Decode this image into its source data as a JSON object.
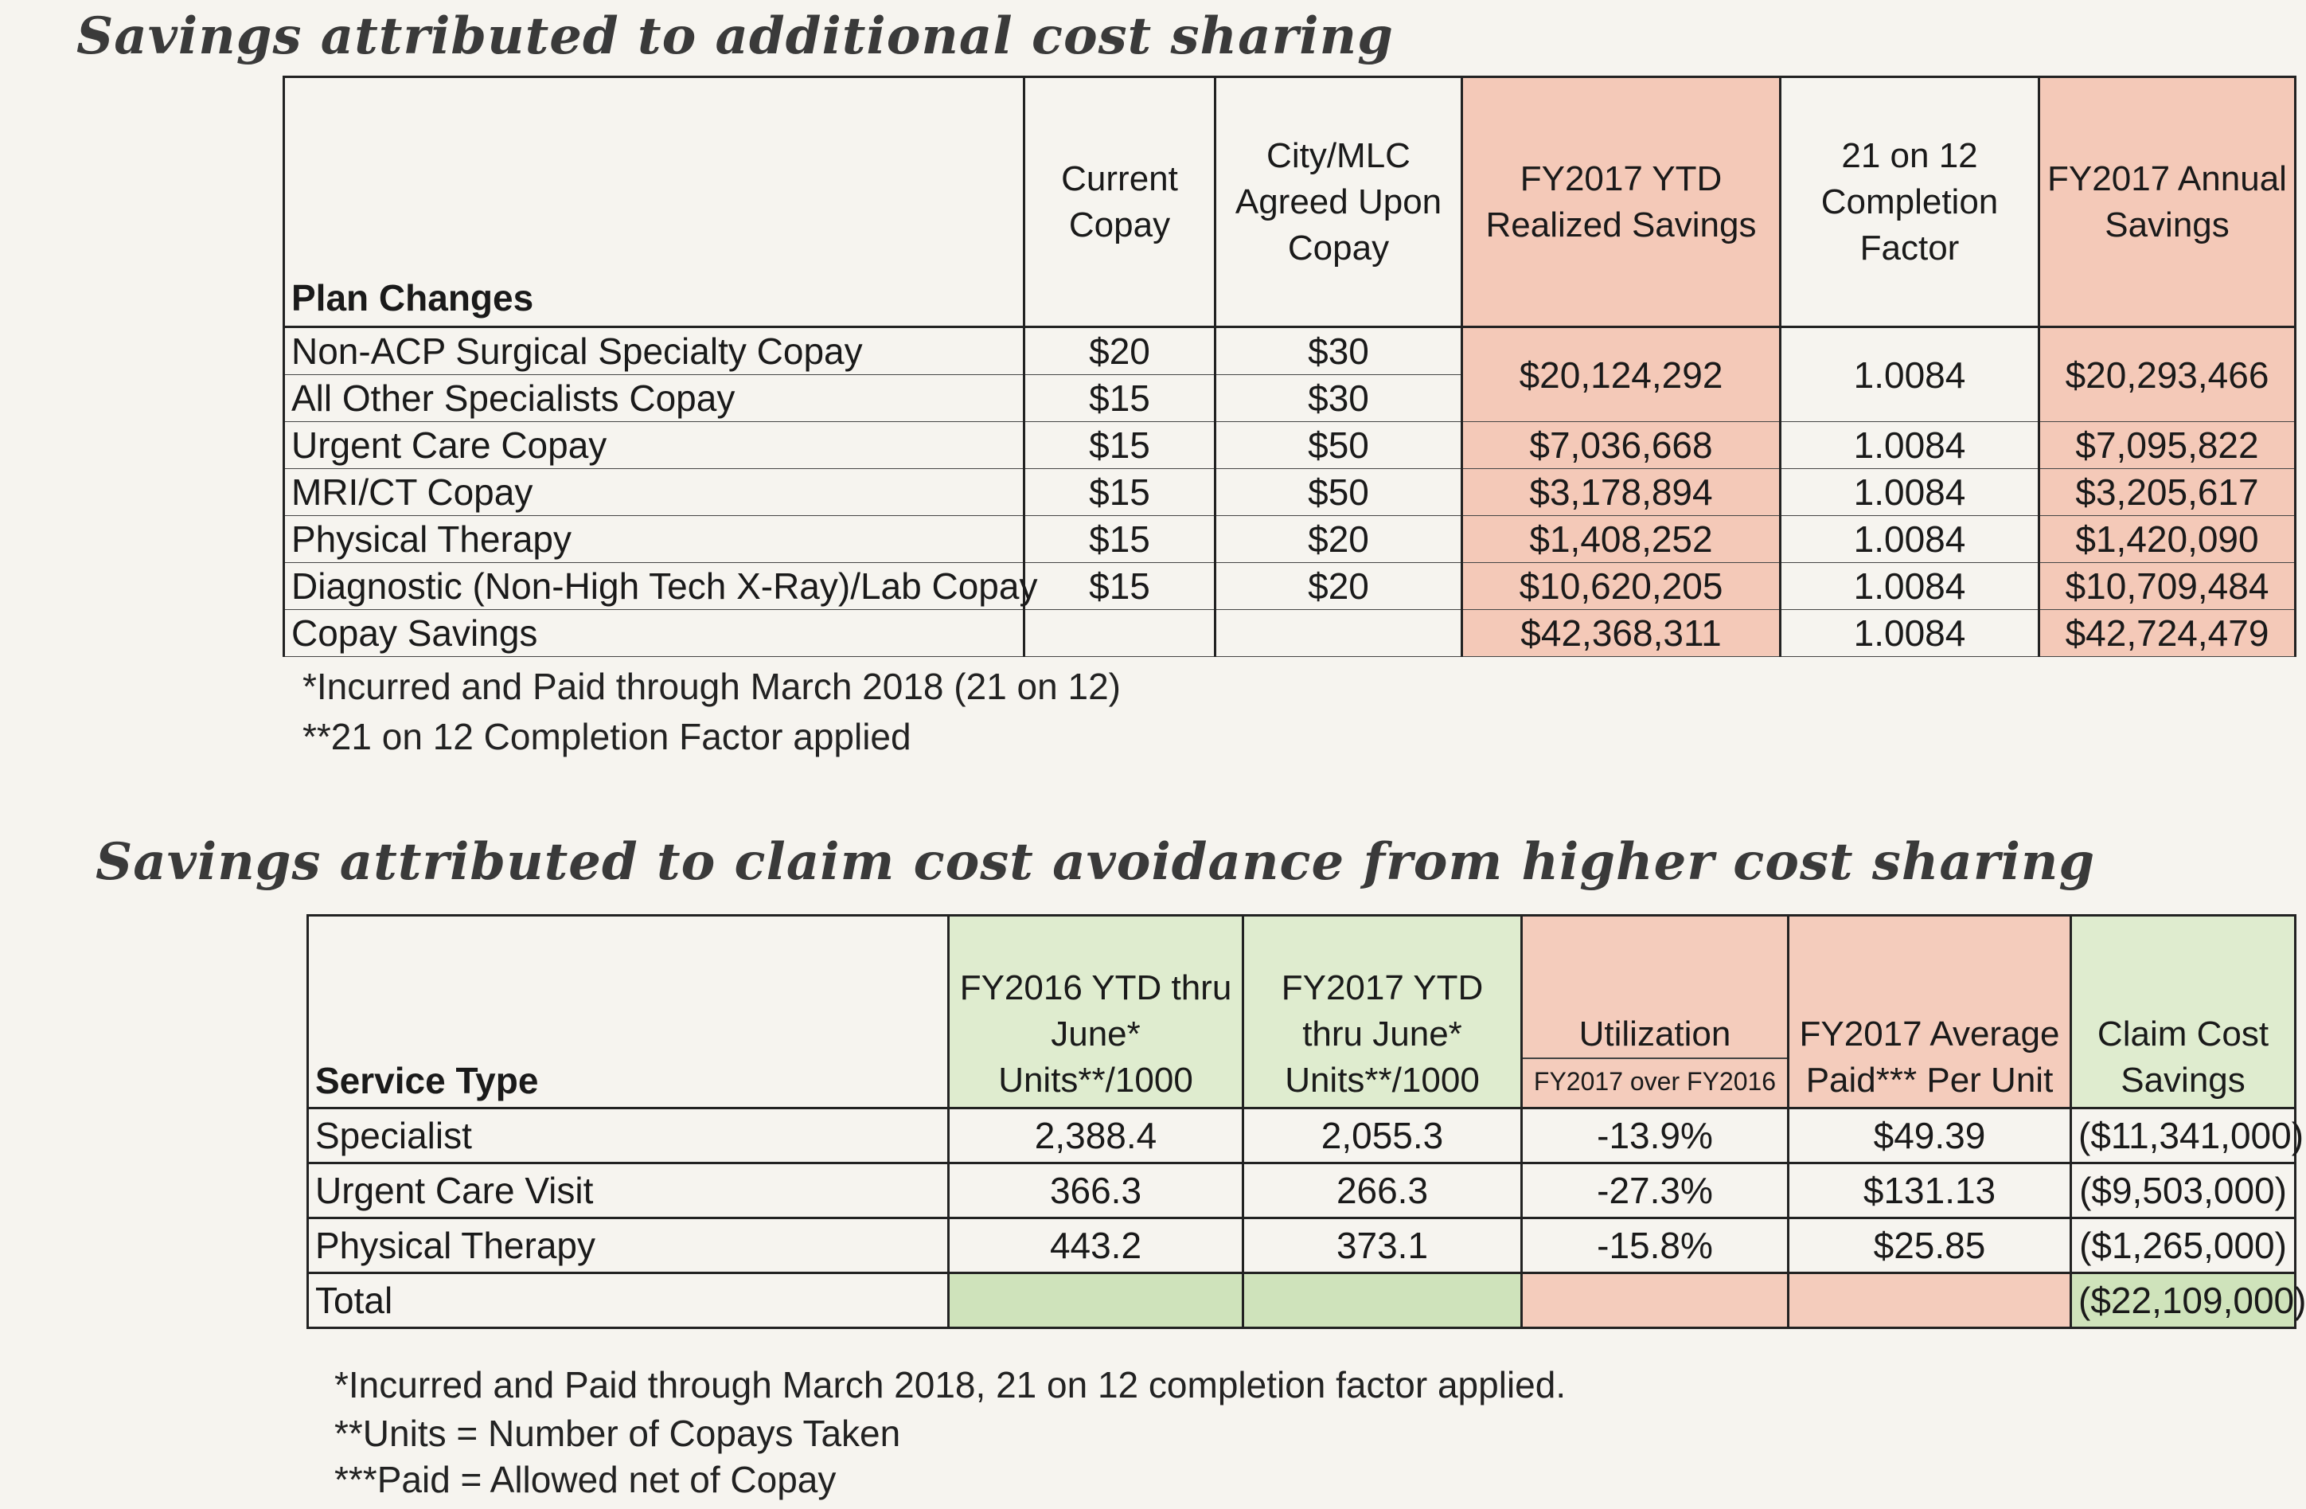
{
  "section1": {
    "title": "Savings attributed to additional cost sharing",
    "headers": {
      "plan_changes": "Plan Changes",
      "current_copay": "Current Copay",
      "agreed_copay": "City/MLC Agreed Upon Copay",
      "ytd_savings": "FY2017 YTD Realized Savings",
      "completion_factor": "21 on 12 Completion Factor",
      "annual_savings": "FY2017 Annual Savings"
    },
    "rows": [
      {
        "label": "Non-ACP Surgical Specialty Copay",
        "current": "$20",
        "agreed": "$30"
      },
      {
        "label": "All Other Specialists Copay",
        "current": "$15",
        "agreed": "$30"
      },
      {
        "label": "Urgent Care Copay",
        "current": "$15",
        "agreed": "$50"
      },
      {
        "label": "MRI/CT Copay",
        "current": "$15",
        "agreed": "$50"
      },
      {
        "label": "Physical Therapy",
        "current": "$15",
        "agreed": "$20"
      },
      {
        "label": "Diagnostic (Non-High Tech X-Ray)/Lab Copay",
        "current": "$15",
        "agreed": "$20"
      },
      {
        "label": "Copay Savings",
        "current": "",
        "agreed": ""
      }
    ],
    "savings": [
      {
        "ytd": "$20,124,292",
        "factor": "1.0084",
        "annual": "$20,293,466"
      },
      {
        "ytd": "$7,036,668",
        "factor": "1.0084",
        "annual": "$7,095,822"
      },
      {
        "ytd": "$3,178,894",
        "factor": "1.0084",
        "annual": "$3,205,617"
      },
      {
        "ytd": "$1,408,252",
        "factor": "1.0084",
        "annual": "$1,420,090"
      },
      {
        "ytd": "$10,620,205",
        "factor": "1.0084",
        "annual": "$10,709,484"
      },
      {
        "ytd": "$42,368,311",
        "factor": "1.0084",
        "annual": "$42,724,479"
      }
    ],
    "notes": [
      "*Incurred and Paid through March 2018 (21 on 12)",
      "**21 on 12 Completion Factor applied"
    ]
  },
  "section2": {
    "title": "Savings attributed to claim cost avoidance from higher cost sharing",
    "headers": {
      "service_type": "Service Type",
      "fy2016": "FY2016 YTD thru June* Units**/1000",
      "fy2017": "FY2017 YTD thru June* Units**/1000",
      "utilization": "Utilization",
      "utilization_sub": "FY2017 over FY2016",
      "avg_paid": "FY2017 Average Paid*** Per Unit",
      "claim_savings": "Claim Cost Savings"
    },
    "rows": [
      {
        "label": "Specialist",
        "fy2016": "2,388.4",
        "fy2017": "2,055.3",
        "util": "-13.9%",
        "avg": "$49.39",
        "savings": "($11,341,000)"
      },
      {
        "label": "Urgent Care Visit",
        "fy2016": "366.3",
        "fy2017": "266.3",
        "util": "-27.3%",
        "avg": "$131.13",
        "savings": "($9,503,000)"
      },
      {
        "label": "Physical Therapy",
        "fy2016": "443.2",
        "fy2017": "373.1",
        "util": "-15.8%",
        "avg": "$25.85",
        "savings": "($1,265,000)"
      },
      {
        "label": "Total",
        "fy2016": "",
        "fy2017": "",
        "util": "",
        "avg": "",
        "savings": "($22,109,000)"
      }
    ],
    "notes": [
      "*Incurred and Paid through March 2018, 21 on 12 completion factor applied.",
      "**Units = Number of Copays Taken",
      "***Paid = Allowed net of Copay"
    ]
  }
}
